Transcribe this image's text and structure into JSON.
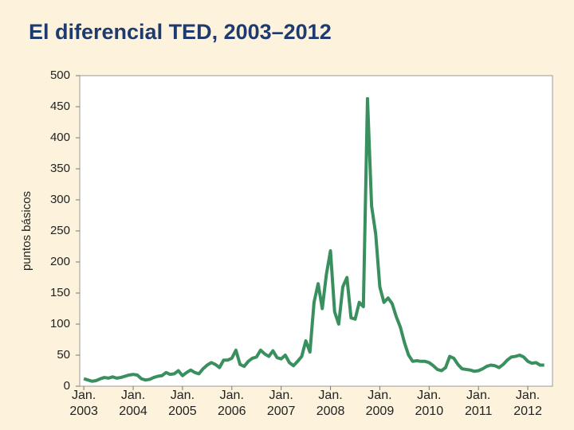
{
  "chart_data": {
    "type": "line",
    "title": "El diferencial TED, 2003–2012",
    "y_label": "puntos básicos",
    "x": [
      "2003-01",
      "2003-02",
      "2003-03",
      "2003-04",
      "2003-05",
      "2003-06",
      "2003-07",
      "2003-08",
      "2003-09",
      "2003-10",
      "2003-11",
      "2003-12",
      "2004-01",
      "2004-02",
      "2004-03",
      "2004-04",
      "2004-05",
      "2004-06",
      "2004-07",
      "2004-08",
      "2004-09",
      "2004-10",
      "2004-11",
      "2004-12",
      "2005-01",
      "2005-02",
      "2005-03",
      "2005-04",
      "2005-05",
      "2005-06",
      "2005-07",
      "2005-08",
      "2005-09",
      "2005-10",
      "2005-11",
      "2005-12",
      "2006-01",
      "2006-02",
      "2006-03",
      "2006-04",
      "2006-05",
      "2006-06",
      "2006-07",
      "2006-08",
      "2006-09",
      "2006-10",
      "2006-11",
      "2006-12",
      "2007-01",
      "2007-02",
      "2007-03",
      "2007-04",
      "2007-05",
      "2007-06",
      "2007-07",
      "2007-08",
      "2007-09",
      "2007-10",
      "2007-11",
      "2007-12",
      "2008-01",
      "2008-02",
      "2008-03",
      "2008-04",
      "2008-05",
      "2008-06",
      "2008-07",
      "2008-08",
      "2008-09",
      "2008-10",
      "2008-11",
      "2008-12",
      "2009-01",
      "2009-02",
      "2009-03",
      "2009-04",
      "2009-05",
      "2009-06",
      "2009-07",
      "2009-08",
      "2009-09",
      "2009-10",
      "2009-11",
      "2009-12",
      "2010-01",
      "2010-02",
      "2010-03",
      "2010-04",
      "2010-05",
      "2010-06",
      "2010-07",
      "2010-08",
      "2010-09",
      "2010-10",
      "2010-11",
      "2010-12",
      "2011-01",
      "2011-02",
      "2011-03",
      "2011-04",
      "2011-05",
      "2011-06",
      "2011-07",
      "2011-08",
      "2011-09",
      "2011-10",
      "2011-11",
      "2011-12",
      "2012-01",
      "2012-02",
      "2012-03",
      "2012-04",
      "2012-05"
    ],
    "series": [
      {
        "name": "TED",
        "color": "#3a8f5f",
        "values": [
          12,
          10,
          8,
          9,
          12,
          14,
          13,
          15,
          13,
          14,
          16,
          18,
          19,
          18,
          12,
          10,
          11,
          14,
          16,
          17,
          22,
          19,
          20,
          25,
          17,
          22,
          26,
          22,
          20,
          28,
          34,
          38,
          35,
          30,
          42,
          42,
          45,
          58,
          35,
          32,
          40,
          45,
          47,
          58,
          52,
          48,
          57,
          46,
          44,
          50,
          38,
          33,
          40,
          48,
          73,
          55,
          135,
          165,
          125,
          180,
          218,
          120,
          100,
          160,
          175,
          110,
          108,
          135,
          128,
          463,
          290,
          245,
          160,
          135,
          142,
          133,
          112,
          95,
          70,
          50,
          40,
          41,
          40,
          40,
          38,
          33,
          27,
          25,
          30,
          48,
          45,
          35,
          28,
          27,
          26,
          24,
          25,
          28,
          32,
          34,
          33,
          30,
          35,
          42,
          47,
          48,
          50,
          47,
          40,
          37,
          38,
          34,
          34
        ]
      }
    ],
    "xlim": [
      "2002-12",
      "2012-07"
    ],
    "xticks": [
      {
        "value": "2003-01",
        "label": "Jan. 2003"
      },
      {
        "value": "2004-01",
        "label": "Jan. 2004"
      },
      {
        "value": "2005-01",
        "label": "Jan. 2005"
      },
      {
        "value": "2006-01",
        "label": "Jan. 2006"
      },
      {
        "value": "2007-01",
        "label": "Jan. 2007"
      },
      {
        "value": "2008-01",
        "label": "Jan. 2008"
      },
      {
        "value": "2009-01",
        "label": "Jan. 2009"
      },
      {
        "value": "2010-01",
        "label": "Jan. 2010"
      },
      {
        "value": "2011-01",
        "label": "Jan. 2011"
      },
      {
        "value": "2012-01",
        "label": "Jan. 2012"
      }
    ],
    "ylim": [
      0,
      500
    ],
    "yticks": [
      0,
      50,
      100,
      150,
      200,
      250,
      300,
      350,
      400,
      450,
      500
    ],
    "grid": false
  }
}
